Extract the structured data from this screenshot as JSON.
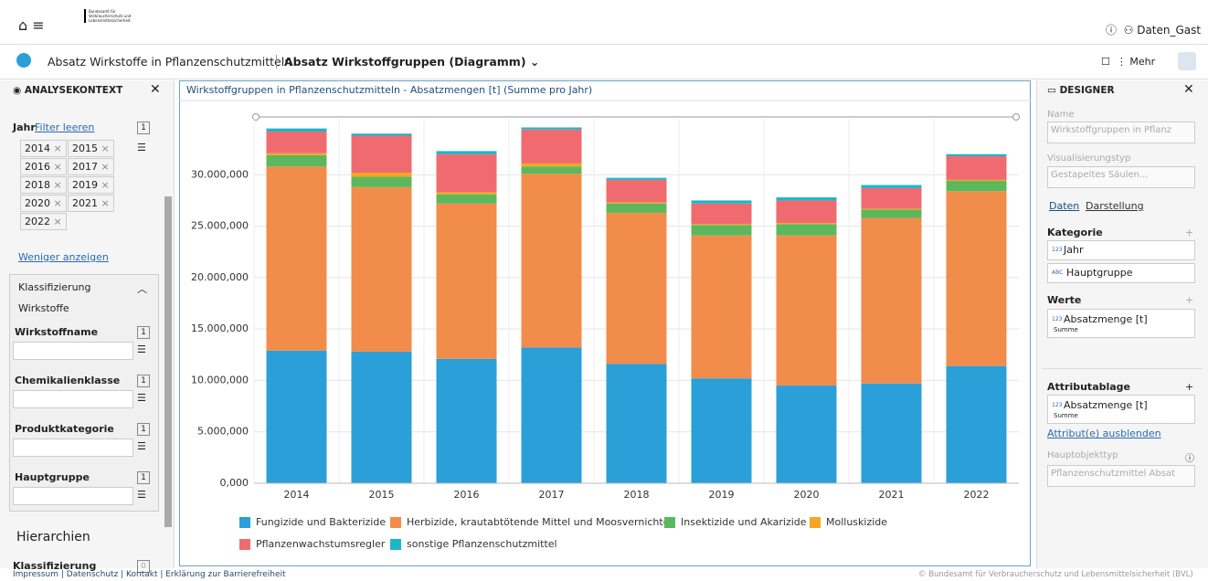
{
  "header": {
    "logo_text": "Bundesamt für Verbraucherschutz und Lebensmittelsicherheit",
    "user": "Daten_Gast",
    "breadcrumb": "Absatz Wirkstoffe in Pflanzenschutzmitteln",
    "view": "Absatz Wirkstoffgruppen (Diagramm)",
    "more": "Mehr"
  },
  "left_panel": {
    "title": "ANALYSEKONTEXT",
    "year_label": "Jahr",
    "filter_clear": "Filter leeren",
    "year_count": "1",
    "years": [
      "2014",
      "2015",
      "2016",
      "2017",
      "2018",
      "2019",
      "2020",
      "2021",
      "2022"
    ],
    "less": "Weniger anzeigen",
    "group": "Klassifizierung",
    "group_sub": "Wirkstoffe",
    "fields": [
      {
        "label": "Wirkstoffname",
        "count": "1"
      },
      {
        "label": "Chemikalienklasse",
        "count": "1"
      },
      {
        "label": "Produktkategorie",
        "count": "1"
      },
      {
        "label": "Hauptgruppe",
        "count": "1"
      }
    ],
    "hierarchies": "Hierarchien",
    "hierarchy_item": "Klassifizierung",
    "hierarchy_count": "0"
  },
  "right_panel": {
    "title": "DESIGNER",
    "name_label": "Name",
    "name_value": "Wirkstoffgruppen in Pflanz",
    "vis_label": "Visualisierungstyp",
    "vis_value": "Gestapeltes Säulen...",
    "tabs": [
      "Daten",
      "Darstellung"
    ],
    "category_label": "Kategorie",
    "category_items": [
      {
        "type": "123",
        "label": "Jahr"
      },
      {
        "type": "ABC",
        "label": "Hauptgruppe"
      }
    ],
    "values_label": "Werte",
    "values_item": {
      "type": "123",
      "label": "Absatzmenge [t]",
      "sub": "Summe"
    },
    "attr_label": "Attributablage",
    "attr_item": {
      "type": "123",
      "label": "Absatzmenge [t]",
      "sub": "Summe"
    },
    "hide": "Attribut(e) ausblenden",
    "main_label": "Hauptobjekttyp",
    "main_value": "Pflanzenschutzmittel Absat"
  },
  "footer": {
    "links": "Impressum | Datenschutz | Kontakt | Erklärung zur Barrierefreiheit",
    "copyright": "© Bundesamt für Verbraucherschutz und Lebensmittelsicherheit (BVL)"
  },
  "chart_data": {
    "type": "stacked_bar",
    "title": "Wirkstoffgruppen in Pflanzenschutzmitteln - Absatzmengen [t] (Summe pro Jahr)",
    "categories": [
      "2014",
      "2015",
      "2016",
      "2017",
      "2018",
      "2019",
      "2020",
      "2021",
      "2022"
    ],
    "series": [
      {
        "name": "Fungizide und Bakterizide",
        "color": "#2a9fd8",
        "values": [
          12900000,
          12800000,
          12100000,
          13200000,
          11600000,
          10200000,
          9500000,
          9700000,
          11400000
        ]
      },
      {
        "name": "Herbizide, krautabtötende Mittel und Moosvernichter",
        "color": "#f28c4b",
        "values": [
          17900000,
          16000000,
          15100000,
          16900000,
          14700000,
          13900000,
          14600000,
          16100000,
          17000000
        ]
      },
      {
        "name": "Insektizide und Akarizide",
        "color": "#5cb85c",
        "values": [
          1100000,
          1000000,
          900000,
          700000,
          900000,
          1000000,
          1100000,
          800000,
          1000000
        ]
      },
      {
        "name": "Molluskizide",
        "color": "#f5a623",
        "values": [
          200000,
          400000,
          200000,
          300000,
          100000,
          100000,
          100000,
          100000,
          100000
        ]
      },
      {
        "name": "Pflanzenwachstumsregler",
        "color": "#ef6b6f",
        "values": [
          2100000,
          3600000,
          3700000,
          3300000,
          2200000,
          2000000,
          2200000,
          2000000,
          2300000
        ]
      },
      {
        "name": "sonstige Pflanzenschutzmittel",
        "color": "#1fb5c9",
        "values": [
          300000,
          200000,
          300000,
          200000,
          200000,
          300000,
          300000,
          300000,
          200000
        ]
      }
    ],
    "ylim": [
      0,
      35000000
    ],
    "yticks": [
      {
        "value": 0,
        "label": "0,000"
      },
      {
        "value": 5000000,
        "label": "5.000,000"
      },
      {
        "value": 10000000,
        "label": "10.000,000"
      },
      {
        "value": 15000000,
        "label": "15.000,000"
      },
      {
        "value": 20000000,
        "label": "20.000,000"
      },
      {
        "value": 25000000,
        "label": "25.000,000"
      },
      {
        "value": 30000000,
        "label": "30.000,000"
      }
    ],
    "grid": true
  }
}
